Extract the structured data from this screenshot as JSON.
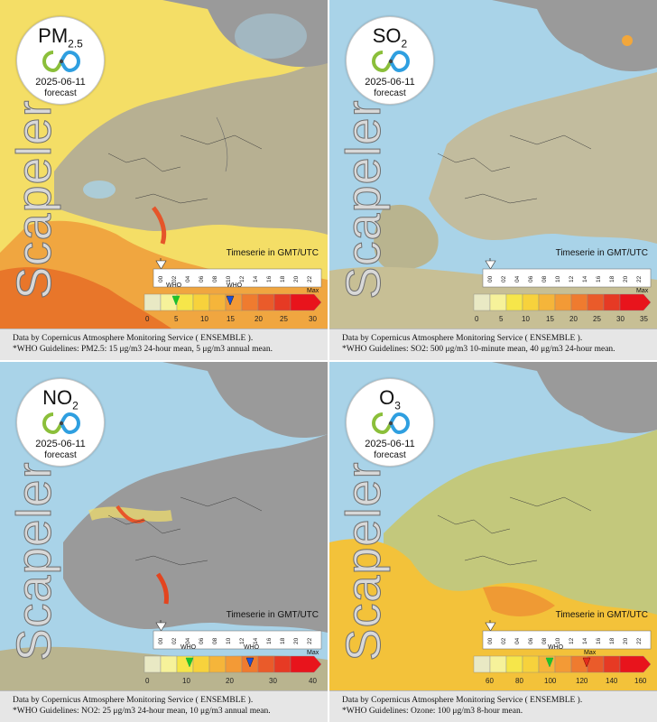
{
  "brand": "Scapeler",
  "timeserie_label": "Timeserie in GMT/UTC",
  "legend_hours": [
    "00",
    "02",
    "04",
    "06",
    "08",
    "10",
    "12",
    "14",
    "16",
    "18",
    "20",
    "22"
  ],
  "who_label": "WHO",
  "max_label": "Max",
  "footer_source": "Data by Copernicus Atmosphere Monitoring Service ( ENSEMBLE ).",
  "panels": [
    {
      "pollutant": "PM",
      "pollutant_sub": "2.5",
      "date": "2025-06-11",
      "forecast": "forecast",
      "scale_values": [
        "0",
        "5",
        "10",
        "15",
        "20",
        "25",
        "30"
      ],
      "who_values": [
        5,
        15
      ],
      "guideline": "*WHO Guidelines: PM2.5: 15 μg/m3 24-hour mean, 5 μg/m3 annual mean."
    },
    {
      "pollutant": "SO",
      "pollutant_sub": "2",
      "date": "2025-06-11",
      "forecast": "forecast",
      "scale_values": [
        "0",
        "5",
        "10",
        "15",
        "20",
        "25",
        "30",
        "35"
      ],
      "who_values": [],
      "guideline": "*WHO Guidelines: SO2: 500 μg/m3 10-minute mean, 40 μg/m3 24-hour mean."
    },
    {
      "pollutant": "NO",
      "pollutant_sub": "2",
      "date": "2025-06-11",
      "forecast": "forecast",
      "scale_values": [
        "0",
        "10",
        "20",
        "30",
        "40"
      ],
      "who_values": [
        10,
        25
      ],
      "guideline": "*WHO Guidelines: NO2: 25 μg/m3 24-hour mean, 10 μg/m3 annual mean."
    },
    {
      "pollutant": "O",
      "pollutant_sub": "3",
      "date": "2025-06-11",
      "forecast": "forecast",
      "scale_values": [
        "60",
        "80",
        "100",
        "120",
        "140",
        "160"
      ],
      "who_values": [
        100
      ],
      "guideline": "*WHO Guidelines: Ozone: 100 μg/m3 8-hour mean."
    }
  ],
  "colors": {
    "sea": "#a9d3e8",
    "land": "#9a9a9a",
    "border": "#3a3a3a",
    "who_green": "#22c422",
    "who_blue": "#1f4fd6",
    "who_red": "#e32d1c"
  },
  "scale_colors": [
    "#e9e9c4",
    "#f6f29a",
    "#f6e64a",
    "#f7d23c",
    "#f5b53a",
    "#f39a36",
    "#ef7b2f",
    "#ea5b2a",
    "#e63a24",
    "#e8141c"
  ]
}
